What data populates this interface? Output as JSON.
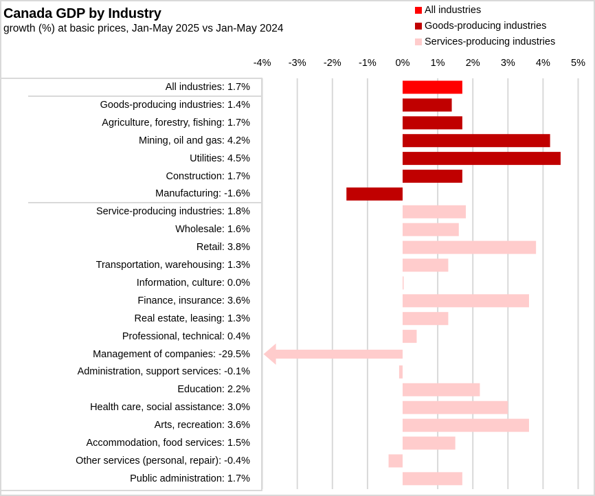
{
  "chart_data": {
    "type": "bar",
    "orientation": "horizontal",
    "title": "Canada GDP by Industry",
    "subtitle": "growth (%) at basic prices,  Jan-May 2025 vs Jan-May 2024",
    "xlabel": "",
    "ylabel": "",
    "xlim": [
      -4,
      5
    ],
    "x_ticks": [
      "-4%",
      "-3%",
      "-2%",
      "-1%",
      "0%",
      "1%",
      "2%",
      "3%",
      "4%",
      "5%"
    ],
    "x_tick_values": [
      -4,
      -3,
      -2,
      -1,
      0,
      1,
      2,
      3,
      4,
      5
    ],
    "grid": true,
    "legend_position": "top-right",
    "legend": [
      {
        "name": "All industries",
        "color": "#ff0000"
      },
      {
        "name": "Goods-producing industries",
        "color": "#c00000"
      },
      {
        "name": "Services-producing industries",
        "color": "#ffcccc"
      }
    ],
    "categories": [
      "All industries: 1.7%",
      "Goods-producing industries: 1.4%",
      "Agriculture, forestry, fishing: 1.7%",
      "Mining, oil and gas: 4.2%",
      "Utilities: 4.5%",
      "Construction: 1.7%",
      "Manufacturing: -1.6%",
      "Service-producing industries: 1.8%",
      "Wholesale: 1.6%",
      "Retail: 3.8%",
      "Transportation, warehousing: 1.3%",
      "Information, culture: 0.0%",
      "Finance, insurance: 3.6%",
      "Real estate, leasing: 1.3%",
      "Professional, technical: 0.4%",
      "Management of companies: -29.5%",
      "Administration, support services: -0.1%",
      "Education: 2.2%",
      "Health care, social assistance: 3.0%",
      "Arts, recreation: 3.6%",
      "Accommodation, food services: 1.5%",
      "Other services (personal, repair): -0.4%",
      "Public administration: 1.7%"
    ],
    "values": [
      1.7,
      1.4,
      1.7,
      4.2,
      4.5,
      1.7,
      -1.6,
      1.8,
      1.6,
      3.8,
      1.3,
      0.0,
      3.6,
      1.3,
      0.4,
      -29.5,
      -0.1,
      2.2,
      3.0,
      3.6,
      1.5,
      -0.4,
      1.7
    ],
    "groups": [
      "all",
      "goods",
      "goods",
      "goods",
      "goods",
      "goods",
      "goods",
      "services",
      "services",
      "services",
      "services",
      "services",
      "services",
      "services",
      "services",
      "services",
      "services",
      "services",
      "services",
      "services",
      "services",
      "services",
      "services"
    ],
    "group_colors": {
      "all": "#ff0000",
      "goods": "#c00000",
      "services": "#ffcccc"
    },
    "annotations": [
      "Management of companies bar truncated at axis minimum with left-pointing arrow (value -29.5%)"
    ]
  },
  "colors": {
    "gridline": "#d9d9d9",
    "frame": "#d9d9d9"
  }
}
